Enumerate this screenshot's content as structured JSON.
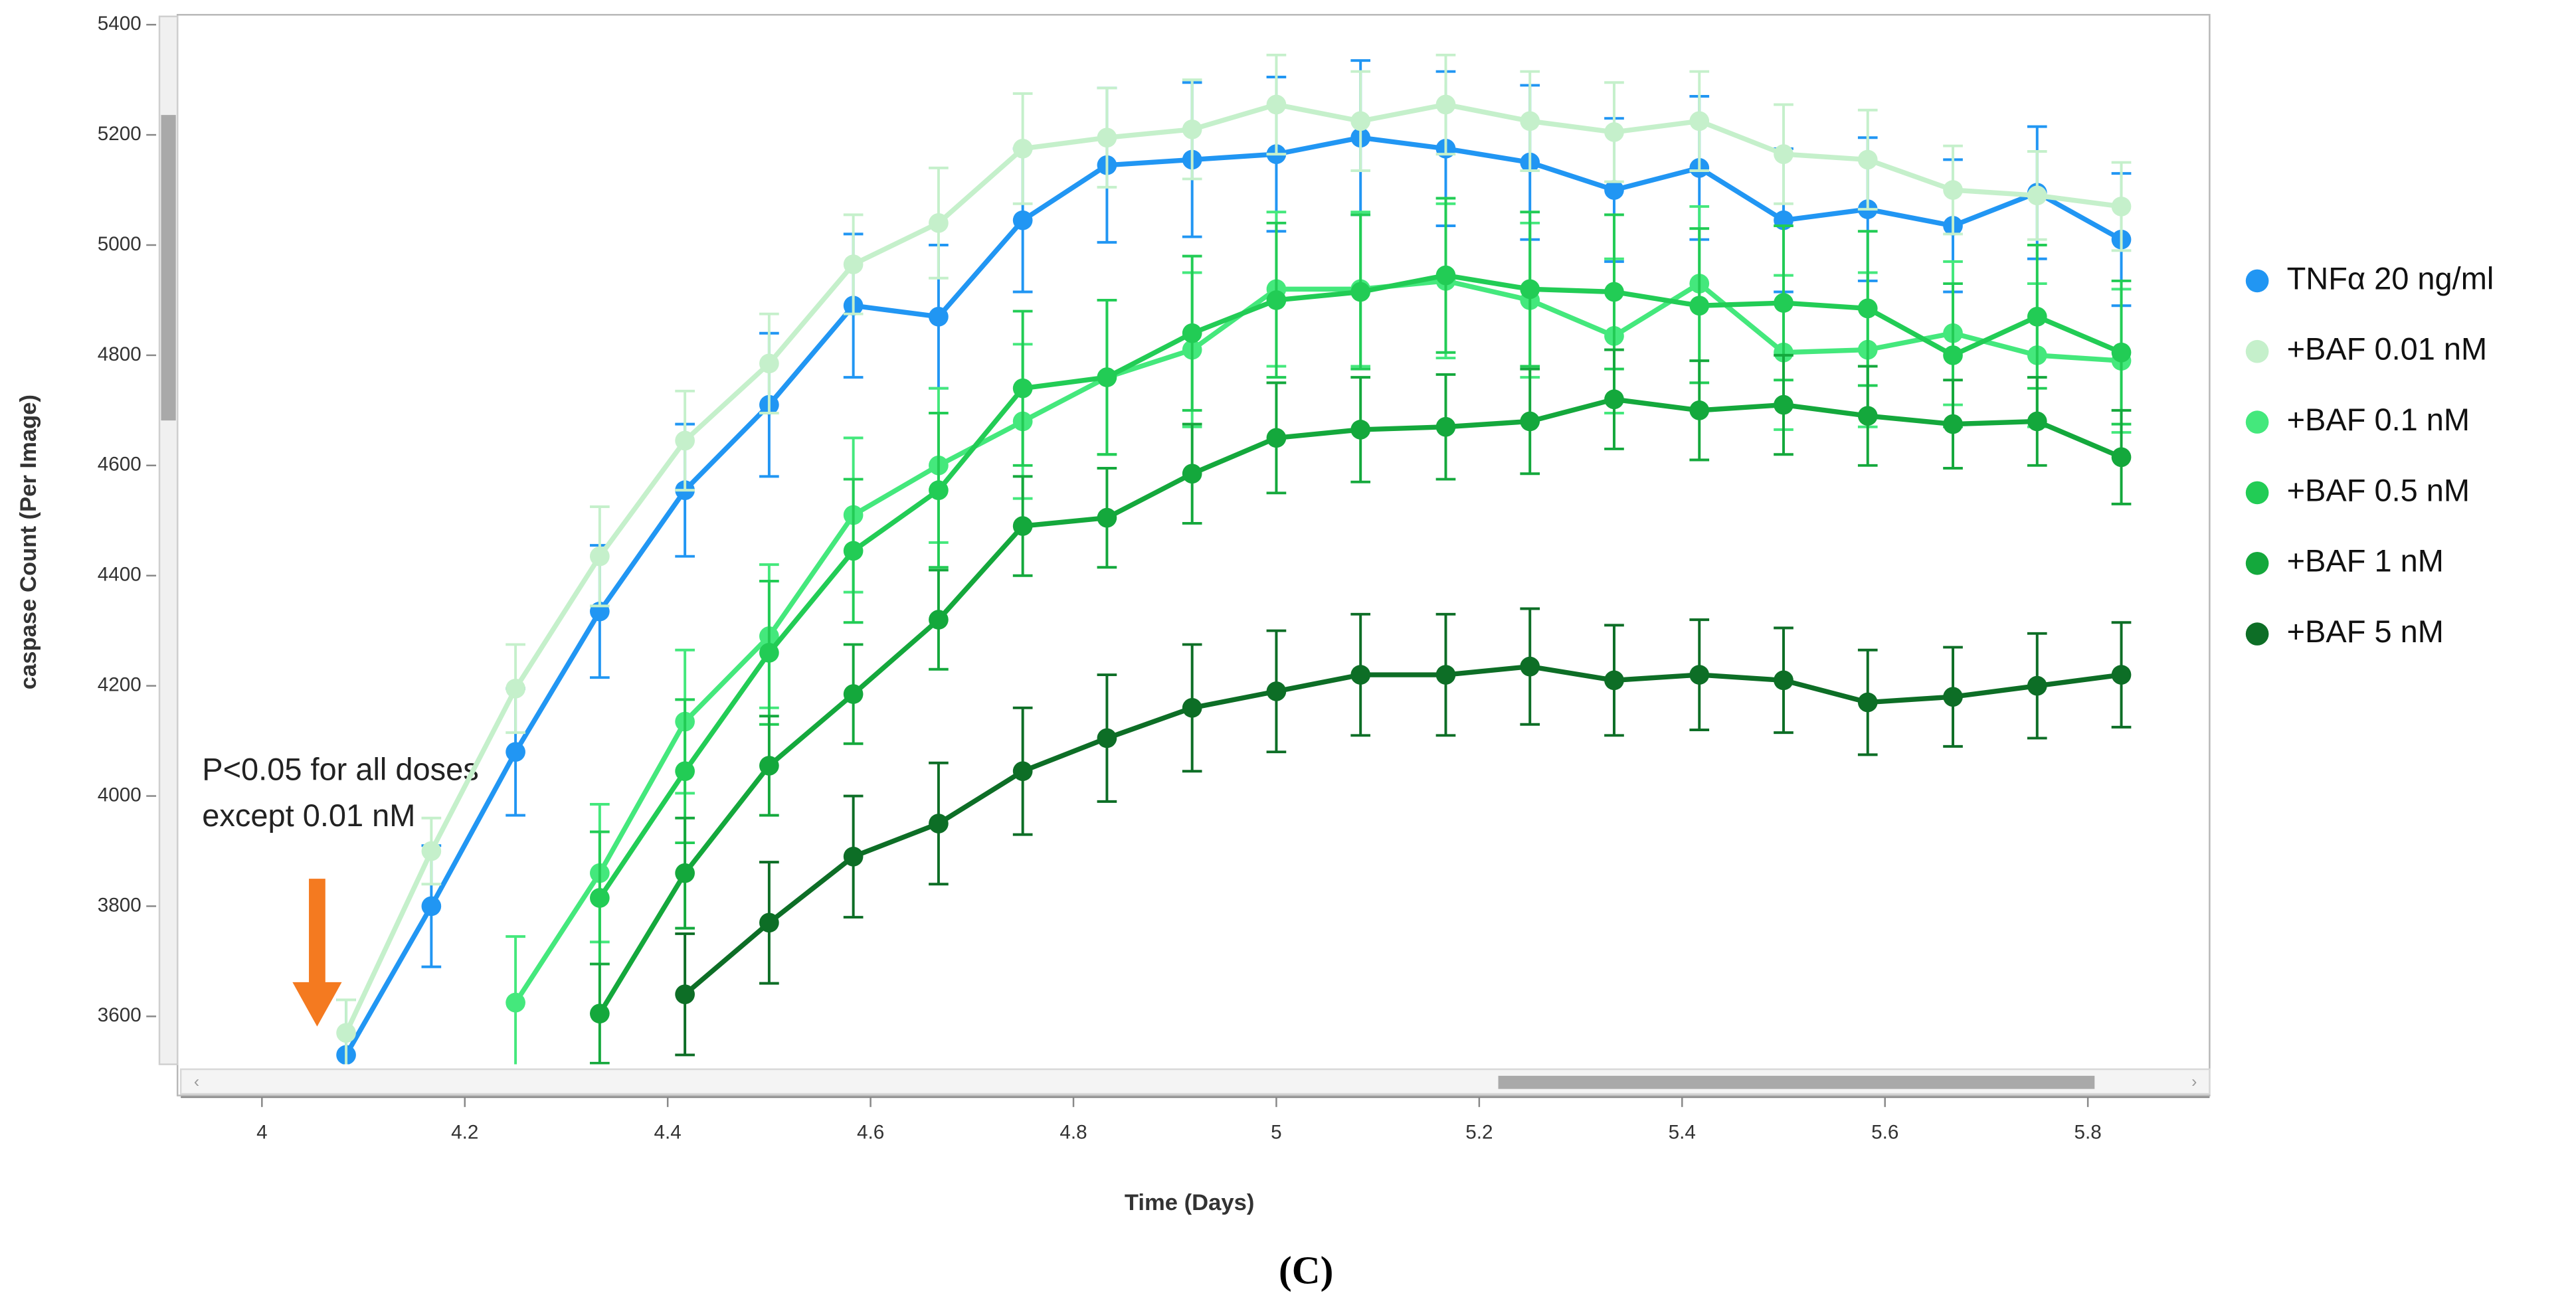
{
  "chart_data": {
    "type": "line",
    "x_label": "Time (Days)",
    "y_label": "caspase Count (Per Image)",
    "annotation": [
      "P<0.05 for all doses",
      "except 0.01 nM"
    ],
    "caption": "(C)",
    "x": [
      4.083,
      4.167,
      4.25,
      4.333,
      4.417,
      4.5,
      4.583,
      4.667,
      4.75,
      4.833,
      4.917,
      5.0,
      5.083,
      5.167,
      5.25,
      5.333,
      5.417,
      5.5,
      5.583,
      5.667,
      5.75,
      5.833
    ],
    "series": [
      {
        "name": "TNFα 20 ng/ml",
        "color": "#2196f3",
        "values": [
          3530,
          3800,
          4080,
          4335,
          4555,
          4710,
          4890,
          4870,
          5045,
          5145,
          5155,
          5165,
          5195,
          5175,
          5150,
          5100,
          5140,
          5045,
          5065,
          5035,
          5095,
          5010
        ],
        "errors": [
          100,
          110,
          115,
          120,
          120,
          130,
          130,
          130,
          130,
          140,
          140,
          140,
          140,
          140,
          140,
          130,
          130,
          130,
          130,
          120,
          120,
          120
        ]
      },
      {
        "name": "+BAF 0.01 nM",
        "color": "#c5f0cb",
        "values": [
          3570,
          3900,
          4195,
          4435,
          4645,
          4785,
          4965,
          5040,
          5175,
          5195,
          5210,
          5255,
          5225,
          5255,
          5225,
          5205,
          5225,
          5165,
          5155,
          5100,
          5090,
          5070
        ],
        "errors": [
          60,
          60,
          80,
          90,
          90,
          90,
          90,
          100,
          100,
          90,
          90,
          90,
          90,
          90,
          90,
          90,
          90,
          90,
          90,
          80,
          80,
          80
        ]
      },
      {
        "name": "+BAF 0.1 nM",
        "color": "#44e87c",
        "values": [
          null,
          null,
          3625,
          3860,
          4135,
          4290,
          4510,
          4600,
          4680,
          4760,
          4810,
          4920,
          4920,
          4935,
          4900,
          4835,
          4930,
          4805,
          4810,
          4840,
          4800,
          4790
        ],
        "errors": [
          null,
          null,
          120,
          125,
          130,
          130,
          140,
          140,
          140,
          140,
          140,
          140,
          140,
          140,
          140,
          140,
          140,
          140,
          140,
          130,
          130,
          130
        ]
      },
      {
        "name": "+BAF 0.5 nM",
        "color": "#22cc55",
        "values": [
          null,
          null,
          null,
          3815,
          4045,
          4260,
          4445,
          4555,
          4740,
          4760,
          4840,
          4900,
          4915,
          4945,
          4920,
          4915,
          4890,
          4895,
          4885,
          4800,
          4870,
          4805
        ],
        "errors": [
          null,
          null,
          null,
          120,
          130,
          130,
          130,
          140,
          140,
          140,
          140,
          140,
          140,
          140,
          140,
          140,
          140,
          140,
          140,
          130,
          130,
          130
        ]
      },
      {
        "name": "+BAF 1 nM",
        "color": "#14a83c",
        "values": [
          null,
          null,
          null,
          3605,
          3860,
          4055,
          4185,
          4320,
          4490,
          4505,
          4585,
          4650,
          4665,
          4670,
          4680,
          4720,
          4700,
          4710,
          4690,
          4675,
          4680,
          4615
        ],
        "errors": [
          null,
          null,
          null,
          90,
          100,
          90,
          90,
          90,
          90,
          90,
          90,
          100,
          95,
          95,
          95,
          90,
          90,
          90,
          90,
          80,
          80,
          85
        ]
      },
      {
        "name": "+BAF 5 nM",
        "color": "#0d6e26",
        "values": [
          null,
          null,
          null,
          null,
          3640,
          3770,
          3890,
          3950,
          4045,
          4105,
          4160,
          4190,
          4220,
          4220,
          4235,
          4210,
          4220,
          4210,
          4170,
          4180,
          4200,
          4220
        ],
        "errors": [
          null,
          null,
          null,
          null,
          110,
          110,
          110,
          110,
          115,
          115,
          115,
          110,
          110,
          110,
          105,
          100,
          100,
          95,
          95,
          90,
          95,
          95
        ]
      }
    ],
    "xlim": [
      3.92,
      5.92
    ],
    "ylim": [
      3513,
      5415
    ],
    "xticks": [
      4,
      4.2,
      4.4,
      4.6,
      4.8,
      5,
      5.2,
      5.4,
      5.6,
      5.8
    ],
    "yticks": [
      3600,
      3800,
      4000,
      4200,
      4400,
      4600,
      4800,
      5000,
      5200,
      5400
    ],
    "grid": false,
    "error_bars": true,
    "legend": "right"
  }
}
